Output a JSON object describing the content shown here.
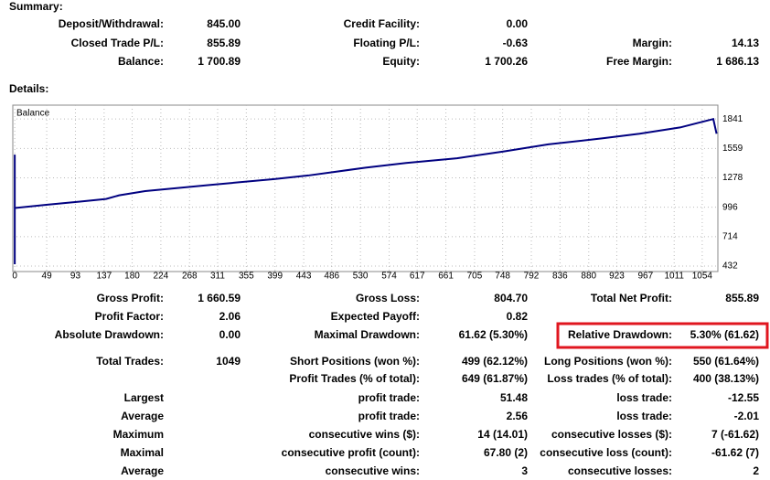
{
  "summary": {
    "title": "Summary:",
    "rows": [
      {
        "left": {
          "label": "Deposit/Withdrawal:",
          "value": "845.00"
        },
        "middle": {
          "label": "Credit Facility:",
          "value": "0.00"
        }
      },
      {
        "left": {
          "label": "Closed Trade P/L:",
          "value": "855.89"
        },
        "middle": {
          "label": "Floating P/L:",
          "value": "-0.63"
        },
        "right": {
          "label": "Margin:",
          "value": "14.13"
        }
      },
      {
        "left": {
          "label": "Balance:",
          "value": "1 700.89"
        },
        "middle": {
          "label": "Equity:",
          "value": "1 700.26"
        },
        "right": {
          "label": "Free Margin:",
          "value": "1 686.13"
        }
      }
    ]
  },
  "details": {
    "title": "Details:",
    "rows": [
      {
        "left": {
          "label": "Gross Profit:",
          "value": "1 660.59"
        },
        "middle": {
          "label": "Gross Loss:",
          "value": "804.70"
        },
        "right": {
          "label": "Total Net Profit:",
          "value": "855.89"
        }
      },
      {
        "left": {
          "label": "Profit Factor:",
          "value": "2.06"
        },
        "middle": {
          "label": "Expected Payoff:",
          "value": "0.82"
        }
      },
      {
        "left": {
          "label": "Absolute Drawdown:",
          "value": "0.00"
        },
        "middle": {
          "label": "Maximal Drawdown:",
          "value": "61.62 (5.30%)"
        },
        "right": {
          "label": "Relative Drawdown:",
          "value": "5.30% (61.62)",
          "highlight": true
        }
      },
      {
        "left": {
          "label": "Total Trades:",
          "value": "1049"
        },
        "middle": {
          "label": "Short Positions (won %):",
          "value": "499 (62.12%)"
        },
        "right": {
          "label": "Long Positions (won %):",
          "value": "550 (61.64%)"
        }
      },
      {
        "middle": {
          "label": "Profit Trades (% of total):",
          "value": "649 (61.87%)"
        },
        "right": {
          "label": "Loss trades (% of total):",
          "value": "400 (38.13%)"
        }
      },
      {
        "left": {
          "label": "Largest"
        },
        "middle": {
          "label": "profit trade:",
          "value": "51.48"
        },
        "right": {
          "label": "loss trade:",
          "value": "-12.55"
        }
      },
      {
        "left": {
          "label": "Average"
        },
        "middle": {
          "label": "profit trade:",
          "value": "2.56"
        },
        "right": {
          "label": "loss trade:",
          "value": "-2.01"
        }
      },
      {
        "left": {
          "label": "Maximum"
        },
        "middle": {
          "label": "consecutive wins ($):",
          "value": "14 (14.01)"
        },
        "right": {
          "label": "consecutive losses ($):",
          "value": "7 (-61.62)"
        }
      },
      {
        "left": {
          "label": "Maximal"
        },
        "middle": {
          "label": "consecutive profit (count):",
          "value": "67.80 (2)"
        },
        "right": {
          "label": "consecutive loss (count):",
          "value": "-61.62 (7)"
        }
      },
      {
        "left": {
          "label": "Average"
        },
        "middle": {
          "label": "consecutive wins:",
          "value": "3"
        },
        "right": {
          "label": "consecutive losses:",
          "value": "2"
        }
      }
    ]
  },
  "chart": {
    "type": "line",
    "grid": true,
    "series": [
      {
        "name": "Balance",
        "color": "#000080",
        "x": [
          0,
          0,
          0,
          50,
          100,
          140,
          160,
          200,
          300,
          398,
          450,
          538,
          600,
          678,
          750,
          818,
          900,
          958,
          1020,
          1071,
          1076
        ],
        "values": [
          1500,
          450,
          988,
          1020,
          1050,
          1075,
          1110,
          1150,
          1210,
          1265,
          1300,
          1375,
          1420,
          1465,
          1530,
          1598,
          1655,
          1700,
          1760,
          1841,
          1700
        ]
      }
    ],
    "xlim": [
      -3,
      1078
    ],
    "ylim": [
      432,
      1974
    ],
    "xticks": [
      0,
      49,
      93,
      137,
      180,
      224,
      268,
      311,
      355,
      399,
      443,
      486,
      530,
      574,
      617,
      661,
      705,
      748,
      792,
      836,
      880,
      923,
      967,
      1011,
      1054
    ],
    "yticks": [
      432,
      714,
      996,
      1278,
      1559,
      1841
    ]
  }
}
